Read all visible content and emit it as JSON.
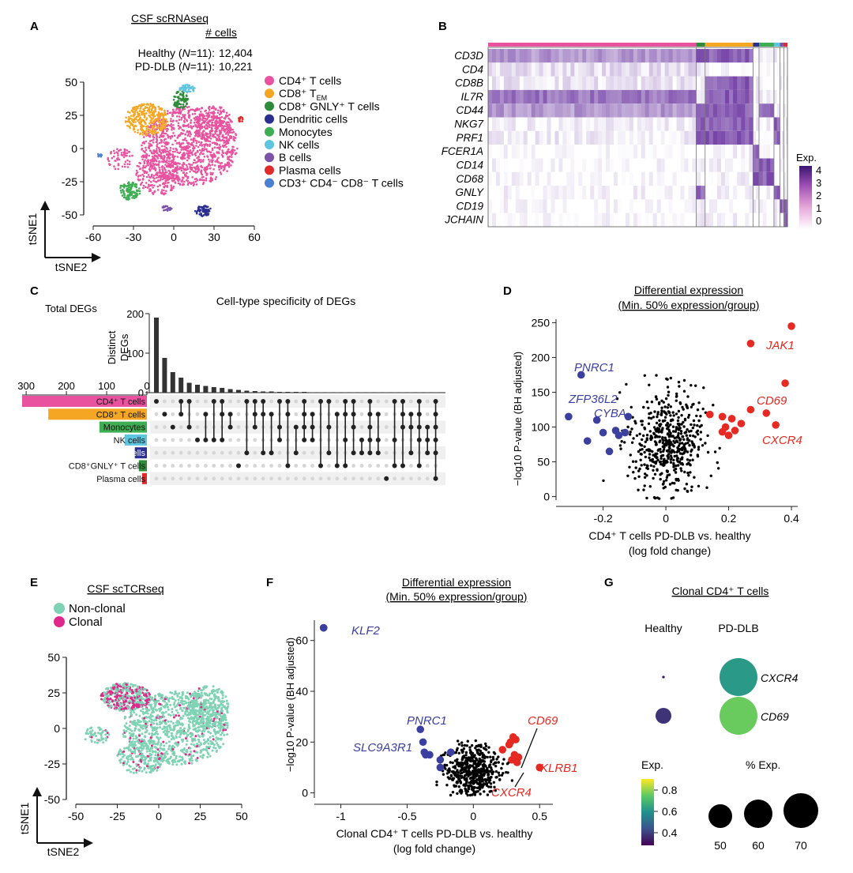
{
  "panels": {
    "A": {
      "letter": "A",
      "title": "CSF scRNAseq",
      "cells_header": "# cells",
      "groups": [
        {
          "name": "Healthy",
          "n": "11",
          "cells": "12,404"
        },
        {
          "name": "PD-DLB",
          "n": "11",
          "cells": "10,221"
        }
      ],
      "n_label": "N",
      "xlabel": "tSNE2",
      "ylabel": "tSNE1",
      "xticks": [
        "-60",
        "-30",
        "0",
        "30",
        "60"
      ],
      "yticks": [
        "50",
        "25",
        "0",
        "-25",
        "-50"
      ],
      "legend": [
        {
          "label": "CD4⁺ T cells",
          "color": "#e8529f"
        },
        {
          "label": "CD8⁺ T",
          "sub": "EM",
          "color": "#f5a623"
        },
        {
          "label": "CD8⁺ GNLY⁺ T cells",
          "color": "#2e8b3a"
        },
        {
          "label": "Dendritic cells",
          "color": "#2b2f8f"
        },
        {
          "label": "Monocytes",
          "color": "#3fae52"
        },
        {
          "label": "NK cells",
          "color": "#5ec5de"
        },
        {
          "label": "B cells",
          "color": "#7b52a8"
        },
        {
          "label": "Plasma cells",
          "color": "#e02b2b"
        },
        {
          "label": "CD3⁺ CD4⁻ CD8⁻ T cells",
          "color": "#4a7fd1"
        }
      ]
    },
    "B": {
      "letter": "B",
      "genes": [
        "CD3D",
        "CD4",
        "CD8B",
        "IL7R",
        "CD44",
        "NKG7",
        "PRF1",
        "FCER1A",
        "CD14",
        "CD68",
        "GNLY",
        "CD19",
        "JCHAIN"
      ],
      "legend_title": "Exp.",
      "legend_ticks": [
        "4",
        "3",
        "2",
        "1",
        "0"
      ]
    },
    "C": {
      "letter": "C",
      "title": "Cell-type specificity of DEGs",
      "ylabel_line1": "Distinct",
      "ylabel_line2": "DEGs",
      "yticks": [
        "200",
        "100",
        "0"
      ],
      "total_label": "Total DEGs",
      "total_ticks": [
        "300",
        "200",
        "100",
        "0"
      ],
      "sets": [
        {
          "label": "CD4⁺ T cells",
          "total": 310,
          "color": "#e8529f"
        },
        {
          "label": "CD8⁺ T cells",
          "total": 245,
          "color": "#f5a623"
        },
        {
          "label": "Monocytes",
          "total": 118,
          "color": "#3fae52"
        },
        {
          "label": "NK cells",
          "total": 55,
          "color": "#5ec5de"
        },
        {
          "label": "Dendritic cells",
          "total": 30,
          "color": "#2b2f8f"
        },
        {
          "label": "CD8⁺GNLY⁺ T cells",
          "total": 20,
          "color": "#2e8b3a"
        },
        {
          "label": "Plasma cells",
          "total": 12,
          "color": "#e02b2b"
        }
      ]
    },
    "D": {
      "letter": "D",
      "title_line1": "Differential expression",
      "title_line2": "(Min. 50% expression/group)",
      "ylabel": "−log10 P-value (BH adjusted)",
      "xlabel_line1": "CD4⁺ T cells PD-DLB vs. healthy",
      "xlabel_line2": "(log fold change)",
      "xticks": [
        "-0.2",
        "0",
        "0.2",
        "0.4"
      ],
      "yticks": [
        "250",
        "200",
        "150",
        "100",
        "50",
        "0"
      ],
      "labels_down": [
        "PNRC1",
        "ZFP36L2",
        "CYBA"
      ],
      "labels_up": [
        "JAK1",
        "CD69",
        "CXCR4"
      ]
    },
    "E": {
      "letter": "E",
      "title": "CSF scTCRseq",
      "legend": [
        {
          "label": "Non-clonal",
          "color": "#7fd3b4"
        },
        {
          "label": "Clonal",
          "color": "#e0288c"
        }
      ],
      "xlabel": "tSNE2",
      "ylabel": "tSNE1",
      "xticks": [
        "-50",
        "-25",
        "0",
        "25",
        "50"
      ],
      "yticks": [
        "50",
        "25",
        "0",
        "-25",
        "-50"
      ]
    },
    "F": {
      "letter": "F",
      "title_line1": "Differential expression",
      "title_line2": "(Min. 50% expression/group)",
      "ylabel": "−log10 P-value (BH adjusted)",
      "xlabel_line1": "Clonal CD4⁺ T cells PD-DLB vs. healthy",
      "xlabel_line2": "(log fold change)",
      "xticks": [
        "-1",
        "-0.5",
        "0",
        "0.5"
      ],
      "yticks": [
        "60",
        "40",
        "20",
        "0"
      ],
      "labels_down": [
        "KLF2",
        "PNRC1",
        "SLC9A3R1"
      ],
      "labels_up": [
        "CD69",
        "KLRB1",
        "CXCR4"
      ]
    },
    "G": {
      "letter": "G",
      "title": "Clonal CD4⁺ T cells",
      "col_healthy": "Healthy",
      "col_pd": "PD-DLB",
      "genes": [
        "CXCR4",
        "CD69"
      ],
      "exp_title": "Exp.",
      "exp_ticks": [
        "0.8",
        "0.6",
        "0.4"
      ],
      "pct_title": "% Exp.",
      "pct_ticks": [
        "50",
        "60",
        "70"
      ]
    }
  },
  "chart_data": [
    {
      "panel": "A",
      "type": "scatter",
      "title": "CSF scRNAseq",
      "xlabel": "tSNE2",
      "ylabel": "tSNE1",
      "xlim": [
        -65,
        65
      ],
      "ylim": [
        -55,
        55
      ],
      "clusters": [
        {
          "name": "CD4⁺ T cells",
          "center": [
            12,
            2
          ],
          "color": "#e8529f"
        },
        {
          "name": "CD8⁺ TEM",
          "center": [
            -20,
            22
          ],
          "color": "#f5a623"
        },
        {
          "name": "CD8⁺ GNLY⁺ T cells",
          "center": [
            5,
            37
          ],
          "color": "#2e8b3a"
        },
        {
          "name": "Dendritic cells",
          "center": [
            22,
            -47
          ],
          "color": "#2b2f8f"
        },
        {
          "name": "Monocytes",
          "center": [
            -33,
            -32
          ],
          "color": "#3fae52"
        },
        {
          "name": "NK cells",
          "center": [
            10,
            45
          ],
          "color": "#5ec5de"
        },
        {
          "name": "B cells",
          "center": [
            -5,
            -45
          ],
          "color": "#7b52a8"
        },
        {
          "name": "Plasma cells",
          "center": [
            50,
            22
          ],
          "color": "#e02b2b"
        },
        {
          "name": "CD3⁺ CD4⁻ CD8⁻ T cells",
          "center": [
            -55,
            -5
          ],
          "color": "#4a7fd1"
        }
      ]
    },
    {
      "panel": "C",
      "type": "bar",
      "title": "Cell-type specificity of DEGs",
      "ylabel": "Distinct DEGs",
      "ylim": [
        0,
        200
      ],
      "values": [
        190,
        88,
        52,
        38,
        25,
        20,
        17,
        14,
        12,
        9,
        7,
        5,
        4,
        3,
        3,
        2,
        2,
        2,
        2,
        1,
        1,
        1,
        1,
        1,
        1,
        1,
        1,
        1,
        1,
        1,
        1,
        1,
        1,
        1,
        1
      ],
      "set_totals": [
        310,
        245,
        118,
        55,
        30,
        20,
        12
      ]
    },
    {
      "panel": "D",
      "type": "scatter",
      "title": "Differential expression (Min. 50% expression/group)",
      "xlabel": "CD4⁺ T cells PD-DLB vs. healthy (log fold change)",
      "ylabel": "−log10 P-value (BH adjusted)",
      "xlim": [
        -0.35,
        0.42
      ],
      "ylim": [
        -5,
        255
      ],
      "down": [
        [
          -0.31,
          115
        ],
        [
          -0.22,
          110
        ],
        [
          -0.2,
          92
        ],
        [
          -0.16,
          95
        ],
        [
          -0.15,
          88
        ],
        [
          -0.13,
          92
        ],
        [
          -0.12,
          115
        ],
        [
          -0.18,
          65
        ],
        [
          -0.25,
          80
        ]
      ],
      "up": [
        [
          0.14,
          118
        ],
        [
          0.18,
          115
        ],
        [
          0.19,
          100
        ],
        [
          0.2,
          88
        ],
        [
          0.22,
          95
        ],
        [
          0.24,
          105
        ],
        [
          0.27,
          125
        ],
        [
          0.32,
          120
        ],
        [
          0.35,
          103
        ],
        [
          0.18,
          93
        ],
        [
          0.21,
          112
        ]
      ],
      "highlighted": [
        {
          "gene": "PNRC1",
          "x": -0.27,
          "y": 175
        },
        {
          "gene": "JAK1",
          "x": 0.4,
          "y": 245
        },
        {
          "gene": "CD69",
          "x": 0.38,
          "y": 163
        },
        {
          "gene": "CXCR4",
          "x": 0.27,
          "y": 220
        }
      ]
    },
    {
      "panel": "E",
      "type": "scatter",
      "title": "CSF scTCRseq",
      "xlabel": "tSNE2",
      "ylabel": "tSNE1",
      "xlim": [
        -55,
        55
      ],
      "ylim": [
        -52,
        52
      ],
      "series": [
        {
          "name": "Non-clonal",
          "color": "#7fd3b4"
        },
        {
          "name": "Clonal",
          "color": "#e0288c"
        }
      ]
    },
    {
      "panel": "F",
      "type": "scatter",
      "title": "Differential expression (Min. 50% expression/group)",
      "xlabel": "Clonal CD4⁺ T cells PD-DLB vs. healthy (log fold change)",
      "ylabel": "−log10 P-value (BH adjusted)",
      "xlim": [
        -1.2,
        0.6
      ],
      "ylim": [
        -2,
        68
      ],
      "down": [
        [
          -1.13,
          65
        ],
        [
          -0.4,
          25
        ],
        [
          -0.38,
          20
        ],
        [
          -0.37,
          16
        ],
        [
          -0.36,
          15
        ],
        [
          -0.33,
          15
        ],
        [
          -0.25,
          13
        ],
        [
          -0.25,
          10
        ],
        [
          -0.17,
          16
        ]
      ],
      "up": [
        [
          0.22,
          17
        ],
        [
          0.27,
          19
        ],
        [
          0.29,
          13
        ],
        [
          0.31,
          15
        ],
        [
          0.33,
          12
        ],
        [
          0.34,
          14
        ],
        [
          0.5,
          10
        ],
        [
          0.28,
          20
        ],
        [
          0.3,
          22
        ]
      ],
      "highlighted": [
        {
          "gene": "KLF2",
          "x": -1.13,
          "y": 65
        },
        {
          "gene": "CD69",
          "x": 0.32,
          "y": 21
        },
        {
          "gene": "KLRB1",
          "x": 0.5,
          "y": 10
        },
        {
          "gene": "CXCR4",
          "x": 0.34,
          "y": 14
        }
      ]
    },
    {
      "panel": "G",
      "type": "dot",
      "title": "Clonal CD4⁺ T cells",
      "genes": [
        "CXCR4",
        "CD69"
      ],
      "groups": [
        "Healthy",
        "PD-DLB"
      ],
      "values": [
        {
          "gene": "CXCR4",
          "group": "Healthy",
          "exp": 0.3,
          "pct": 5
        },
        {
          "gene": "CXCR4",
          "group": "PD-DLB",
          "exp": 0.6,
          "pct": 72
        },
        {
          "gene": "CD69",
          "group": "Healthy",
          "exp": 0.35,
          "pct": 50
        },
        {
          "gene": "CD69",
          "group": "PD-DLB",
          "exp": 0.75,
          "pct": 72
        }
      ]
    }
  ]
}
